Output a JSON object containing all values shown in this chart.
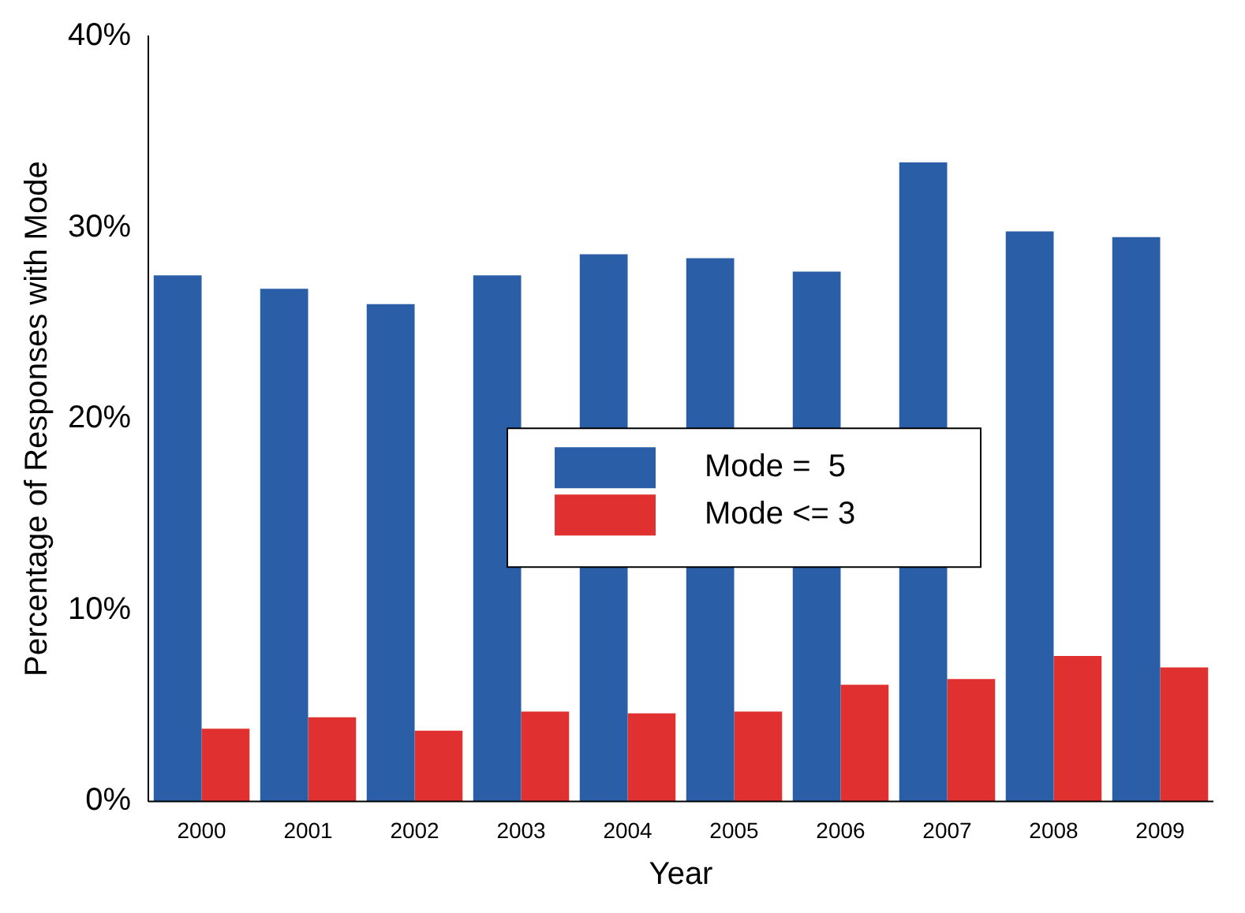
{
  "chart_data": {
    "type": "bar",
    "xlabel": "Year",
    "ylabel": "Percentage of Responses with Mode",
    "categories": [
      "2000",
      "2001",
      "2002",
      "2003",
      "2004",
      "2005",
      "2006",
      "2007",
      "2008",
      "2009"
    ],
    "series": [
      {
        "name": "Mode =  5",
        "color": "#2a5fa8",
        "values": [
          27.5,
          26.8,
          26.0,
          27.5,
          28.6,
          28.4,
          27.7,
          33.4,
          29.8,
          29.5
        ]
      },
      {
        "name": "Mode <= 3",
        "color": "#e03030",
        "values": [
          3.8,
          4.4,
          3.7,
          4.7,
          4.6,
          4.7,
          6.1,
          6.4,
          7.6,
          7.0
        ]
      }
    ],
    "ylim": [
      0,
      40
    ],
    "yticks": [
      {
        "value": 0,
        "label": "0%"
      },
      {
        "value": 10,
        "label": "10%"
      },
      {
        "value": 20,
        "label": "20%"
      },
      {
        "value": 30,
        "label": "30%"
      },
      {
        "value": 40,
        "label": "40%"
      }
    ],
    "grid": false,
    "legend": "center"
  }
}
